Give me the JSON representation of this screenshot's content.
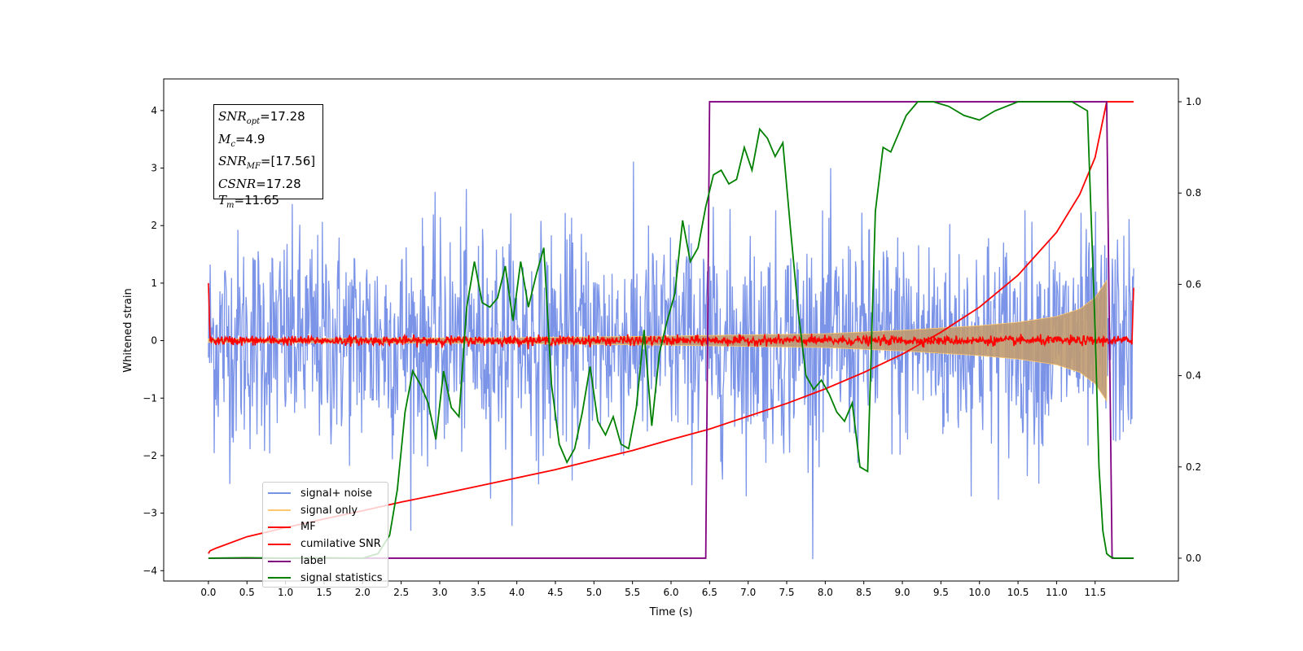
{
  "chart_data": {
    "type": "line",
    "xlabel": "Time (s)",
    "ylabel": "Whitened strain",
    "xlim": [
      -0.58,
      12.58
    ],
    "ylim": [
      -4.18,
      4.55
    ],
    "y2lim": [
      -0.05,
      1.05
    ],
    "x_ticks": [
      "0.0",
      "0.5",
      "1.0",
      "1.5",
      "2.0",
      "2.5",
      "3.0",
      "3.5",
      "4.0",
      "4.5",
      "5.0",
      "5.5",
      "6.0",
      "6.5",
      "7.0",
      "7.5",
      "8.0",
      "8.5",
      "9.0",
      "9.5",
      "10.0",
      "10.5",
      "11.0",
      "11.5"
    ],
    "y_ticks": [
      "−4",
      "−3",
      "−2",
      "−1",
      "0",
      "1",
      "2",
      "3",
      "4"
    ],
    "y2_ticks": [
      "0.0",
      "0.2",
      "0.4",
      "0.6",
      "0.8",
      "1.0"
    ],
    "annotation": {
      "snr_opt": "=17.28",
      "mc": "=4.9",
      "snr_mf": "=[17.56]",
      "csnr": "=17.28",
      "tm": "=11.65"
    },
    "legend": [
      {
        "name": "signal+ noise",
        "color": "#7892e8"
      },
      {
        "name": "signal only",
        "color": "#ffc870"
      },
      {
        "name": "MF",
        "color": "#ff0000"
      },
      {
        "name": "cumilative SNR",
        "color": "#ff0000"
      },
      {
        "name": "label",
        "color": "#800080"
      },
      {
        "name": "signal statistics",
        "color": "#008000"
      }
    ],
    "series": [
      {
        "name": "signal+ noise",
        "axis": "left",
        "kind": "noise",
        "t_start": 0.0,
        "t_end": 12.0,
        "sigma": 0.95,
        "max_abs": 3.8
      },
      {
        "name": "signal only",
        "axis": "left",
        "kind": "chirp_envelope",
        "t_start": 0.0,
        "t_end": 11.65,
        "envelope": [
          [
            0.0,
            0.03
          ],
          [
            2.0,
            0.04
          ],
          [
            4.0,
            0.05
          ],
          [
            6.0,
            0.08
          ],
          [
            8.0,
            0.12
          ],
          [
            9.0,
            0.18
          ],
          [
            10.0,
            0.26
          ],
          [
            10.5,
            0.32
          ],
          [
            11.0,
            0.42
          ],
          [
            11.3,
            0.55
          ],
          [
            11.5,
            0.75
          ],
          [
            11.65,
            1.05
          ]
        ]
      },
      {
        "name": "MF",
        "axis": "left",
        "kind": "noise",
        "t_start": 0.0,
        "t_end": 12.0,
        "sigma": 0.04,
        "edge_values": [
          1.0,
          0.92
        ]
      },
      {
        "name": "cumilative SNR",
        "axis": "right",
        "x": [
          0.0,
          0.02,
          0.1,
          0.5,
          1.0,
          1.5,
          2.0,
          2.5,
          3.0,
          3.5,
          4.0,
          4.5,
          5.0,
          5.5,
          6.0,
          6.5,
          7.0,
          7.5,
          8.0,
          8.5,
          9.0,
          9.5,
          10.0,
          10.5,
          11.0,
          11.3,
          11.5,
          11.65,
          12.0
        ],
        "y": [
          0.01,
          0.016,
          0.022,
          0.047,
          0.067,
          0.086,
          0.104,
          0.123,
          0.14,
          0.158,
          0.176,
          0.194,
          0.215,
          0.236,
          0.26,
          0.283,
          0.311,
          0.339,
          0.371,
          0.407,
          0.447,
          0.495,
          0.55,
          0.62,
          0.714,
          0.797,
          0.878,
          1.0,
          1.0
        ]
      },
      {
        "name": "label",
        "axis": "right",
        "x": [
          0.0,
          6.45,
          6.5,
          11.65,
          11.72,
          12.0
        ],
        "y": [
          0.0,
          0.0,
          1.0,
          1.0,
          0.0,
          0.0
        ]
      },
      {
        "name": "signal statistics",
        "axis": "right",
        "x": [
          0.0,
          0.5,
          1.0,
          1.5,
          2.0,
          2.2,
          2.35,
          2.45,
          2.55,
          2.65,
          2.75,
          2.85,
          2.95,
          3.05,
          3.15,
          3.25,
          3.35,
          3.45,
          3.55,
          3.65,
          3.75,
          3.85,
          3.95,
          4.05,
          4.15,
          4.25,
          4.35,
          4.45,
          4.55,
          4.65,
          4.75,
          4.85,
          4.95,
          5.05,
          5.15,
          5.25,
          5.35,
          5.45,
          5.55,
          5.65,
          5.75,
          5.85,
          5.95,
          6.05,
          6.15,
          6.25,
          6.35,
          6.45,
          6.55,
          6.65,
          6.75,
          6.85,
          6.95,
          7.05,
          7.15,
          7.25,
          7.35,
          7.45,
          7.55,
          7.65,
          7.75,
          7.85,
          7.95,
          8.05,
          8.15,
          8.25,
          8.35,
          8.45,
          8.55,
          8.65,
          8.75,
          8.85,
          8.95,
          9.05,
          9.2,
          9.4,
          9.6,
          9.8,
          10.0,
          10.2,
          10.5,
          10.8,
          11.0,
          11.2,
          11.4,
          11.5,
          11.55,
          11.6,
          11.65,
          11.7,
          11.75,
          11.8,
          11.9,
          12.0
        ],
        "y": [
          0.0,
          0.001,
          0.0,
          0.001,
          0.0,
          0.01,
          0.05,
          0.15,
          0.32,
          0.41,
          0.38,
          0.34,
          0.26,
          0.41,
          0.33,
          0.31,
          0.55,
          0.65,
          0.56,
          0.55,
          0.57,
          0.64,
          0.52,
          0.65,
          0.55,
          0.62,
          0.68,
          0.38,
          0.25,
          0.21,
          0.24,
          0.32,
          0.42,
          0.3,
          0.27,
          0.31,
          0.25,
          0.24,
          0.33,
          0.5,
          0.29,
          0.45,
          0.52,
          0.58,
          0.74,
          0.65,
          0.68,
          0.77,
          0.84,
          0.85,
          0.82,
          0.83,
          0.9,
          0.85,
          0.94,
          0.92,
          0.88,
          0.91,
          0.72,
          0.54,
          0.4,
          0.37,
          0.39,
          0.36,
          0.32,
          0.3,
          0.34,
          0.2,
          0.19,
          0.76,
          0.9,
          0.89,
          0.93,
          0.97,
          1.0,
          1.0,
          0.99,
          0.97,
          0.96,
          0.98,
          1.0,
          1.0,
          1.0,
          1.0,
          0.98,
          0.5,
          0.2,
          0.06,
          0.01,
          0.003,
          0.0,
          0.0,
          0.0,
          0.0
        ]
      }
    ]
  }
}
